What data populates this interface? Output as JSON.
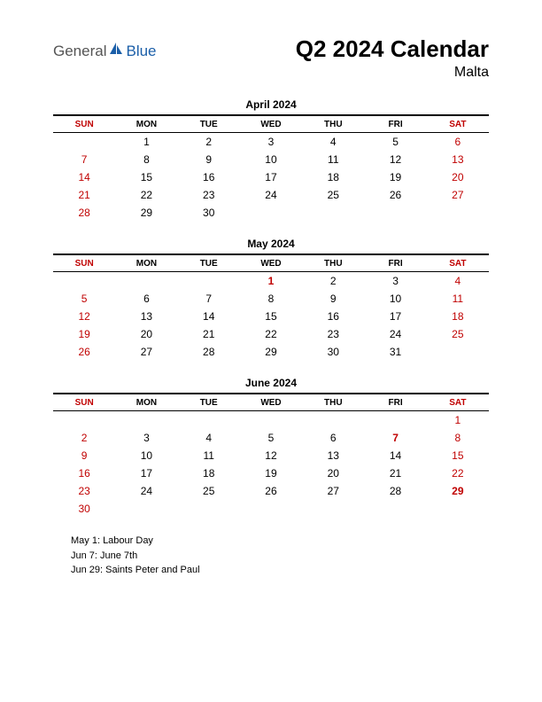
{
  "logo": {
    "text1": "General",
    "text2": "Blue",
    "icon_color": "#1a5ea8",
    "text1_color": "#555555"
  },
  "title": "Q2 2024 Calendar",
  "subtitle": "Malta",
  "day_headers": [
    "SUN",
    "MON",
    "TUE",
    "WED",
    "THU",
    "FRI",
    "SAT"
  ],
  "months": [
    {
      "title": "April 2024",
      "weeks": [
        [
          {
            "d": ""
          },
          {
            "d": "1"
          },
          {
            "d": "2"
          },
          {
            "d": "3"
          },
          {
            "d": "4"
          },
          {
            "d": "5"
          },
          {
            "d": "6"
          }
        ],
        [
          {
            "d": "7"
          },
          {
            "d": "8"
          },
          {
            "d": "9"
          },
          {
            "d": "10"
          },
          {
            "d": "11"
          },
          {
            "d": "12"
          },
          {
            "d": "13"
          }
        ],
        [
          {
            "d": "14"
          },
          {
            "d": "15"
          },
          {
            "d": "16"
          },
          {
            "d": "17"
          },
          {
            "d": "18"
          },
          {
            "d": "19"
          },
          {
            "d": "20"
          }
        ],
        [
          {
            "d": "21"
          },
          {
            "d": "22"
          },
          {
            "d": "23"
          },
          {
            "d": "24"
          },
          {
            "d": "25"
          },
          {
            "d": "26"
          },
          {
            "d": "27"
          }
        ],
        [
          {
            "d": "28"
          },
          {
            "d": "29"
          },
          {
            "d": "30"
          },
          {
            "d": ""
          },
          {
            "d": ""
          },
          {
            "d": ""
          },
          {
            "d": ""
          }
        ]
      ]
    },
    {
      "title": "May 2024",
      "weeks": [
        [
          {
            "d": ""
          },
          {
            "d": ""
          },
          {
            "d": ""
          },
          {
            "d": "1",
            "h": true
          },
          {
            "d": "2"
          },
          {
            "d": "3"
          },
          {
            "d": "4"
          }
        ],
        [
          {
            "d": "5"
          },
          {
            "d": "6"
          },
          {
            "d": "7"
          },
          {
            "d": "8"
          },
          {
            "d": "9"
          },
          {
            "d": "10"
          },
          {
            "d": "11"
          }
        ],
        [
          {
            "d": "12"
          },
          {
            "d": "13"
          },
          {
            "d": "14"
          },
          {
            "d": "15"
          },
          {
            "d": "16"
          },
          {
            "d": "17"
          },
          {
            "d": "18"
          }
        ],
        [
          {
            "d": "19"
          },
          {
            "d": "20"
          },
          {
            "d": "21"
          },
          {
            "d": "22"
          },
          {
            "d": "23"
          },
          {
            "d": "24"
          },
          {
            "d": "25"
          }
        ],
        [
          {
            "d": "26"
          },
          {
            "d": "27"
          },
          {
            "d": "28"
          },
          {
            "d": "29"
          },
          {
            "d": "30"
          },
          {
            "d": "31"
          },
          {
            "d": ""
          }
        ]
      ]
    },
    {
      "title": "June 2024",
      "weeks": [
        [
          {
            "d": ""
          },
          {
            "d": ""
          },
          {
            "d": ""
          },
          {
            "d": ""
          },
          {
            "d": ""
          },
          {
            "d": ""
          },
          {
            "d": "1"
          }
        ],
        [
          {
            "d": "2"
          },
          {
            "d": "3"
          },
          {
            "d": "4"
          },
          {
            "d": "5"
          },
          {
            "d": "6"
          },
          {
            "d": "7",
            "h": true
          },
          {
            "d": "8"
          }
        ],
        [
          {
            "d": "9"
          },
          {
            "d": "10"
          },
          {
            "d": "11"
          },
          {
            "d": "12"
          },
          {
            "d": "13"
          },
          {
            "d": "14"
          },
          {
            "d": "15"
          }
        ],
        [
          {
            "d": "16"
          },
          {
            "d": "17"
          },
          {
            "d": "18"
          },
          {
            "d": "19"
          },
          {
            "d": "20"
          },
          {
            "d": "21"
          },
          {
            "d": "22"
          }
        ],
        [
          {
            "d": "23"
          },
          {
            "d": "24"
          },
          {
            "d": "25"
          },
          {
            "d": "26"
          },
          {
            "d": "27"
          },
          {
            "d": "28"
          },
          {
            "d": "29",
            "h": true
          }
        ],
        [
          {
            "d": "30"
          },
          {
            "d": ""
          },
          {
            "d": ""
          },
          {
            "d": ""
          },
          {
            "d": ""
          },
          {
            "d": ""
          },
          {
            "d": ""
          }
        ]
      ]
    }
  ],
  "holidays": [
    "May 1: Labour Day",
    "Jun 7: June 7th",
    "Jun 29: Saints Peter and Paul"
  ]
}
